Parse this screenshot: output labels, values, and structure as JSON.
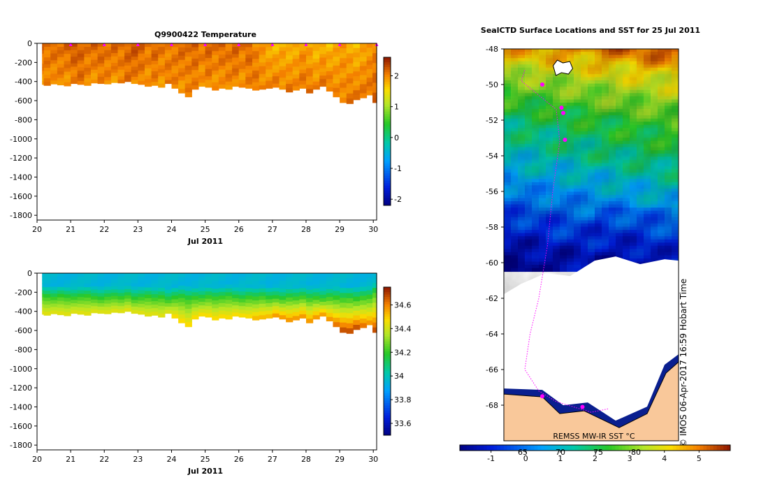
{
  "chart_data": [
    {
      "type": "heatmap",
      "title": "Q9900422  Temperature",
      "xlabel": "Jul 2011",
      "ylabel": "",
      "x_ticks": [
        "20",
        "21",
        "22",
        "23",
        "24",
        "25",
        "26",
        "27",
        "28",
        "29",
        "30"
      ],
      "xlim": [
        20,
        30.1
      ],
      "ylim": [
        -1850,
        0
      ],
      "y_ticks": [
        "0",
        "-200",
        "-400",
        "-600",
        "-800",
        "-1000",
        "-1200",
        "-1400",
        "-1600",
        "-1800"
      ],
      "y_tick_values": [
        0,
        -200,
        -400,
        -600,
        -800,
        -1000,
        -1200,
        -1400,
        -1600,
        -1800
      ],
      "colorbar_ticks": [
        "2",
        "1",
        "0",
        "-1",
        "-2"
      ],
      "colorbar_values": [
        2,
        1,
        0,
        -1,
        -2
      ],
      "colorbar_range": [
        -2.2,
        2.6
      ],
      "profile_times": [
        20.1,
        20.3,
        20.5,
        20.7,
        20.9,
        21.1,
        21.3,
        21.5,
        21.7,
        21.9,
        22.1,
        22.3,
        22.5,
        22.7,
        22.9,
        23.1,
        23.3,
        23.5,
        23.7,
        23.9,
        24.1,
        24.3,
        24.5,
        24.7,
        24.9,
        25.1,
        25.3,
        25.5,
        25.7,
        25.9,
        26.1,
        26.3,
        26.5,
        26.7,
        26.9,
        27.1,
        27.3,
        27.5,
        27.7,
        27.9,
        28.1,
        28.3,
        28.5,
        28.7,
        28.9,
        29.1,
        29.3,
        29.5,
        29.7,
        29.9,
        30.05
      ],
      "profile_max_depth": [
        430,
        440,
        425,
        435,
        445,
        420,
        430,
        440,
        415,
        420,
        425,
        410,
        415,
        400,
        420,
        430,
        450,
        440,
        460,
        420,
        470,
        520,
        560,
        480,
        450,
        460,
        490,
        470,
        480,
        450,
        460,
        470,
        490,
        480,
        470,
        460,
        480,
        510,
        490,
        470,
        520,
        480,
        450,
        500,
        560,
        620,
        630,
        590,
        570,
        540,
        620
      ],
      "surface_temp": [
        2.2,
        2.1,
        2.2,
        2.1,
        2.2,
        2.3,
        2.2,
        2.1,
        2.2,
        2.2,
        2.1,
        2.2,
        2.1,
        2.2,
        2.3,
        2.2,
        2.1,
        2.2,
        2.1,
        2.0,
        2.1,
        2.2,
        2.1,
        2.2,
        2.1,
        2.2,
        2.1,
        2.2,
        2.1,
        2.2,
        2.1,
        2.2,
        2.0,
        1.9,
        1.8,
        1.7,
        1.8,
        1.7,
        1.8,
        1.9,
        1.8,
        1.7,
        1.8,
        1.7,
        1.8,
        1.9,
        1.8,
        1.7,
        1.8,
        1.9,
        2.0
      ],
      "deep_temp": [
        1.9,
        2.0,
        1.9,
        2.0,
        1.9,
        2.0,
        2.1,
        2.0,
        1.9,
        2.0,
        2.0,
        1.9,
        2.0,
        2.1,
        2.0,
        2.0,
        1.9,
        2.0,
        1.9,
        2.1,
        2.0,
        1.9,
        2.0,
        2.0,
        1.9,
        2.0,
        1.9,
        1.9,
        2.0,
        2.0,
        1.9,
        2.0,
        2.1,
        2.0,
        2.0,
        2.1,
        2.0,
        2.1,
        2.0,
        2.1,
        2.1,
        2.0,
        2.1,
        2.1,
        2.0,
        2.0,
        2.1,
        2.1,
        2.1,
        2.1,
        2.2
      ],
      "surface_markers": [
        21,
        22,
        23,
        24,
        25,
        26,
        27,
        28,
        29,
        30.1
      ]
    },
    {
      "type": "heatmap",
      "title": "",
      "xlabel": "Jul 2011",
      "ylabel": "",
      "x_ticks": [
        "20",
        "21",
        "22",
        "23",
        "24",
        "25",
        "26",
        "27",
        "28",
        "29",
        "30"
      ],
      "xlim": [
        20,
        30.1
      ],
      "ylim": [
        -1850,
        0
      ],
      "y_ticks": [
        "0",
        "-200",
        "-400",
        "-600",
        "-800",
        "-1000",
        "-1200",
        "-1400",
        "-1600",
        "-1800"
      ],
      "y_tick_values": [
        0,
        -200,
        -400,
        -600,
        -800,
        -1000,
        -1200,
        -1400,
        -1600,
        -1800
      ],
      "colorbar_ticks": [
        "34.6",
        "34.4",
        "34.2",
        "34",
        "33.8",
        "33.6"
      ],
      "colorbar_values": [
        34.6,
        34.4,
        34.2,
        34,
        33.8,
        33.6
      ],
      "colorbar_range": [
        33.5,
        34.75
      ],
      "profile_times": [
        20.1,
        20.3,
        20.5,
        20.7,
        20.9,
        21.1,
        21.3,
        21.5,
        21.7,
        21.9,
        22.1,
        22.3,
        22.5,
        22.7,
        22.9,
        23.1,
        23.3,
        23.5,
        23.7,
        23.9,
        24.1,
        24.3,
        24.5,
        24.7,
        24.9,
        25.1,
        25.3,
        25.5,
        25.7,
        25.9,
        26.1,
        26.3,
        26.5,
        26.7,
        26.9,
        27.1,
        27.3,
        27.5,
        27.7,
        27.9,
        28.1,
        28.3,
        28.5,
        28.7,
        28.9,
        29.1,
        29.3,
        29.5,
        29.7,
        29.9,
        30.05
      ],
      "profile_max_depth": [
        430,
        440,
        425,
        435,
        445,
        420,
        430,
        440,
        415,
        420,
        425,
        410,
        415,
        400,
        420,
        430,
        450,
        440,
        460,
        420,
        470,
        520,
        560,
        480,
        450,
        460,
        490,
        470,
        480,
        450,
        460,
        470,
        490,
        480,
        470,
        460,
        480,
        510,
        490,
        470,
        520,
        480,
        450,
        500,
        560,
        620,
        630,
        590,
        570,
        540,
        620
      ],
      "surface_value": 33.95,
      "thermocline_depth": [
        180,
        190,
        200,
        185,
        195,
        200,
        190,
        185,
        200,
        210,
        195,
        190,
        200,
        185,
        210,
        200,
        190,
        205,
        195,
        220,
        200,
        195,
        210,
        200,
        205,
        190,
        200,
        195,
        185,
        200,
        210,
        195,
        200,
        190,
        205,
        200,
        210,
        195,
        200,
        190,
        205,
        200,
        210,
        195,
        200,
        205,
        200,
        210,
        195,
        190,
        150
      ],
      "deep_value": [
        34.45,
        34.45,
        34.45,
        34.45,
        34.45,
        34.45,
        34.45,
        34.45,
        34.45,
        34.45,
        34.45,
        34.45,
        34.45,
        34.45,
        34.45,
        34.45,
        34.45,
        34.45,
        34.45,
        34.45,
        34.5,
        34.5,
        34.5,
        34.5,
        34.5,
        34.5,
        34.5,
        34.5,
        34.5,
        34.5,
        34.5,
        34.5,
        34.55,
        34.55,
        34.55,
        34.6,
        34.6,
        34.6,
        34.6,
        34.6,
        34.6,
        34.6,
        34.6,
        34.6,
        34.65,
        34.7,
        34.7,
        34.7,
        34.65,
        34.6,
        34.7
      ]
    },
    {
      "type": "heatmap",
      "title": "SealCTD Surface Locations and SST for 25 Jul 2011",
      "y_ticks": [
        "-48",
        "-50",
        "-52",
        "-54",
        "-56",
        "-58",
        "-60",
        "-62",
        "-64",
        "-66",
        "-68"
      ],
      "y_tick_values": [
        -48,
        -50,
        -52,
        -54,
        -56,
        -58,
        -60,
        -62,
        -64,
        -66,
        -68
      ],
      "ylim": [
        -70,
        -48
      ],
      "colorbar_ticks": [
        "-1",
        "0",
        "1",
        "2",
        "3",
        "4",
        "5"
      ],
      "colorbar_values": [
        -1,
        0,
        1,
        2,
        3,
        4,
        5
      ],
      "colorbar_range": [
        -1.9,
        5.9
      ],
      "colorbar_overlay_ticks": [
        "65",
        "70",
        "75",
        "80"
      ],
      "sst_band_lat": [
        -48,
        -50,
        -52,
        -54,
        -56,
        -58,
        -60
      ],
      "sst_band_value": [
        4.8,
        3.2,
        2.1,
        1.4,
        0.4,
        -0.6,
        -1.5
      ],
      "ice_edge_lat": -60.2,
      "seal_track": [
        [
          0.12,
          -49.2
        ],
        [
          0.1,
          -49.8
        ],
        [
          0.2,
          -50.6
        ],
        [
          0.3,
          -51.4
        ],
        [
          0.32,
          -53.2
        ],
        [
          0.28,
          -56
        ],
        [
          0.25,
          -59
        ],
        [
          0.2,
          -62
        ],
        [
          0.15,
          -64
        ],
        [
          0.12,
          -66
        ],
        [
          0.2,
          -67.2
        ],
        [
          0.3,
          -67.8
        ],
        [
          0.5,
          -68.4
        ],
        [
          0.6,
          -68.2
        ]
      ],
      "seal_locations": [
        [
          0.22,
          -50.0
        ],
        [
          0.33,
          -51.3
        ],
        [
          0.34,
          -51.6
        ],
        [
          0.35,
          -53.1
        ],
        [
          0.22,
          -67.5
        ],
        [
          0.45,
          -68.1
        ]
      ],
      "source": "REMSS MW-IR SST °C",
      "stamp": "© IMOS 06-Apr-2017 16:59 Hobart Time"
    }
  ],
  "colors": {
    "magenta": "#ff00ff",
    "land": "#f9c89a",
    "background": "#ffffff"
  }
}
